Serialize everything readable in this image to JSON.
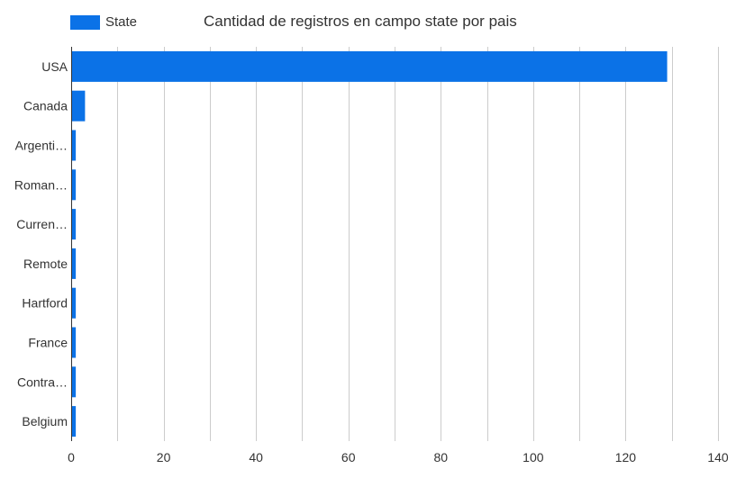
{
  "chart_data": {
    "type": "bar",
    "orientation": "horizontal",
    "title": "Cantidad de registros en campo state por pais",
    "categories": [
      "USA",
      "Canada",
      "Argenti…",
      "Roman…",
      "Curren…",
      "Remote",
      "Hartford",
      "France",
      "Contra…",
      "Belgium"
    ],
    "series": [
      {
        "name": "State",
        "values": [
          129,
          3,
          1,
          1,
          1,
          1,
          1,
          1,
          1,
          1
        ]
      }
    ],
    "xlim": [
      0,
      140
    ],
    "xticks": [
      0,
      20,
      40,
      60,
      80,
      100,
      120,
      140
    ],
    "xlabel": "",
    "ylabel": "",
    "grid": true,
    "legend_position": "top-left",
    "bar_color": "#0b72e7",
    "grid_color": "#cccccc",
    "axis_color": "#333333"
  }
}
